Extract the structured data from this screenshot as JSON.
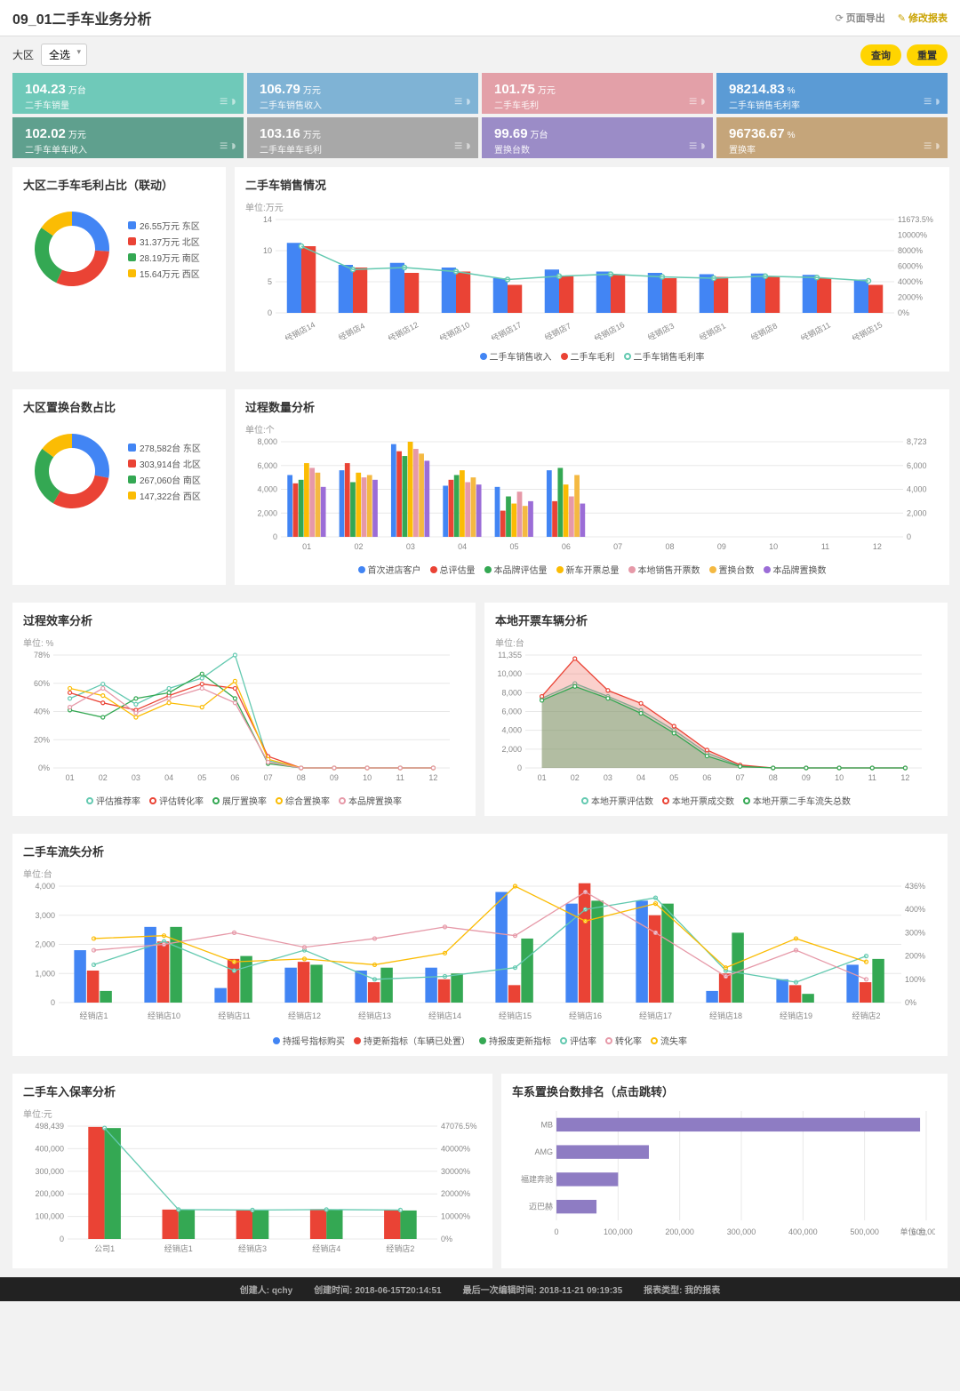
{
  "header": {
    "title": "09_01二手车业务分析",
    "actions": {
      "export": "页面导出",
      "edit": "修改报表"
    }
  },
  "toolbar": {
    "region_label": "大区",
    "region_value": "全选",
    "query": "查询",
    "reset": "重置"
  },
  "kpis": [
    {
      "value": "104.23",
      "unit": "万台",
      "label": "二手车销量",
      "color": "#6fc9b9"
    },
    {
      "value": "106.79",
      "unit": "万元",
      "label": "二手车销售收入",
      "color": "#7fb3d5"
    },
    {
      "value": "101.75",
      "unit": "万元",
      "label": "二手车毛利",
      "color": "#e3a0a8"
    },
    {
      "value": "98214.83",
      "unit": "%",
      "label": "二手车销售毛利率",
      "color": "#5b9bd5"
    },
    {
      "value": "102.02",
      "unit": "万元",
      "label": "二手车单车收入",
      "color": "#5fa08e"
    },
    {
      "value": "103.16",
      "unit": "万元",
      "label": "二手车单车毛利",
      "color": "#a8a8a8"
    },
    {
      "value": "99.69",
      "unit": "万台",
      "label": "置换台数",
      "color": "#9b8cc7"
    },
    {
      "value": "96736.67",
      "unit": "%",
      "label": "置换率",
      "color": "#c5a57a"
    }
  ],
  "donut1": {
    "title": "大区二手车毛利占比（联动）",
    "items": [
      {
        "label": "26.55万元 东区",
        "color": "#4285f4",
        "v": 26.55
      },
      {
        "label": "31.37万元 北区",
        "color": "#ea4335",
        "v": 31.37
      },
      {
        "label": "28.19万元 南区",
        "color": "#34a853",
        "v": 28.19
      },
      {
        "label": "15.64万元 西区",
        "color": "#fbbc04",
        "v": 15.64
      }
    ]
  },
  "sales": {
    "title": "二手车销售情况",
    "unit": "单位:万元",
    "cats": [
      "经销店14",
      "经销店4",
      "经销店12",
      "经销店10",
      "经销店17",
      "经销店7",
      "经销店16",
      "经销店3",
      "经销店1",
      "经销店8",
      "经销店11",
      "经销店15"
    ],
    "s1": {
      "name": "二手车销售收入",
      "color": "#4285f4",
      "data": [
        10.5,
        7.2,
        7.5,
        6.8,
        5.2,
        6.5,
        6.2,
        6.0,
        5.8,
        5.9,
        5.7,
        5.0
      ]
    },
    "s2": {
      "name": "二手车毛利",
      "color": "#ea4335",
      "data": [
        10.0,
        6.8,
        6.0,
        6.2,
        4.2,
        5.5,
        5.8,
        5.2,
        5.4,
        5.5,
        5.2,
        4.2
      ]
    },
    "s3": {
      "name": "二手车销售毛利率",
      "color": "#63c9b0",
      "data": [
        10.0,
        6.5,
        6.8,
        6.2,
        5.0,
        5.5,
        5.8,
        5.4,
        5.2,
        5.5,
        5.3,
        4.8
      ]
    },
    "ymax": 14,
    "yticks": [
      "0",
      "5",
      "10",
      "14"
    ],
    "y2max": 11673.5,
    "y2ticks": [
      "0%",
      "2000%",
      "4000%",
      "6000%",
      "8000%",
      "10000%",
      "11673.5%"
    ]
  },
  "donut2": {
    "title": "大区置换台数占比",
    "items": [
      {
        "label": "278,582台 东区",
        "color": "#4285f4",
        "v": 278582
      },
      {
        "label": "303,914台 北区",
        "color": "#ea4335",
        "v": 303914
      },
      {
        "label": "267,060台 南区",
        "color": "#34a853",
        "v": 267060
      },
      {
        "label": "147,322台 西区",
        "color": "#fbbc04",
        "v": 147322
      }
    ]
  },
  "process_qty": {
    "title": "过程数量分析",
    "unit": "单位:个",
    "cats": [
      "01",
      "02",
      "03",
      "04",
      "05",
      "06",
      "07",
      "08",
      "09",
      "10",
      "11",
      "12"
    ],
    "ymax": 8000,
    "yticks": [
      "0",
      "2,000",
      "4,000",
      "6,000",
      "8,000"
    ],
    "y2ticks": [
      "0",
      "2,000",
      "4,000",
      "6,000",
      "8,723"
    ],
    "series": [
      {
        "name": "首次进店客户",
        "color": "#4285f4",
        "data": [
          5200,
          5600,
          7800,
          4300,
          4200,
          5600,
          0,
          0,
          0,
          0,
          0,
          0
        ]
      },
      {
        "name": "总评估量",
        "color": "#ea4335",
        "data": [
          4500,
          6200,
          7200,
          4800,
          2200,
          3000,
          0,
          0,
          0,
          0,
          0,
          0
        ]
      },
      {
        "name": "本品牌评估量",
        "color": "#34a853",
        "data": [
          4800,
          4600,
          6800,
          5200,
          3400,
          5800,
          0,
          0,
          0,
          0,
          0,
          0
        ]
      },
      {
        "name": "新车开票总量",
        "color": "#fbbc04",
        "data": [
          6200,
          5400,
          8000,
          5600,
          2800,
          4400,
          0,
          0,
          0,
          0,
          0,
          0
        ]
      },
      {
        "name": "本地销售开票数",
        "color": "#e699a8",
        "data": [
          5800,
          5000,
          7400,
          4600,
          3800,
          3400,
          0,
          0,
          0,
          0,
          0,
          0
        ]
      },
      {
        "name": "置换台数",
        "color": "#f4b942",
        "data": [
          5400,
          5200,
          7000,
          5000,
          2600,
          5200,
          0,
          0,
          0,
          0,
          0,
          0
        ]
      },
      {
        "name": "本品牌置换数",
        "color": "#9b6dd7",
        "data": [
          4200,
          4800,
          6400,
          4400,
          3000,
          2800,
          0,
          0,
          0,
          0,
          0,
          0
        ]
      }
    ]
  },
  "process_eff": {
    "title": "过程效率分析",
    "unit": "单位: %",
    "cats": [
      "01",
      "02",
      "03",
      "04",
      "05",
      "06",
      "07",
      "08",
      "09",
      "10",
      "11",
      "12"
    ],
    "ymax": 78,
    "yticks": [
      "0%",
      "20%",
      "40%",
      "60%",
      "78%"
    ],
    "series": [
      {
        "name": "评估推荐率",
        "color": "#63c9b0",
        "data": [
          48,
          58,
          44,
          55,
          62,
          78,
          5,
          0,
          0,
          0,
          0,
          0
        ]
      },
      {
        "name": "评估转化率",
        "color": "#ea4335",
        "data": [
          52,
          45,
          40,
          50,
          58,
          55,
          8,
          0,
          0,
          0,
          0,
          0
        ]
      },
      {
        "name": "展厅置换率",
        "color": "#34a853",
        "data": [
          40,
          35,
          48,
          52,
          65,
          48,
          3,
          0,
          0,
          0,
          0,
          0
        ]
      },
      {
        "name": "综合置换率",
        "color": "#fbbc04",
        "data": [
          55,
          50,
          35,
          45,
          42,
          60,
          6,
          0,
          0,
          0,
          0,
          0
        ]
      },
      {
        "name": "本品牌置换率",
        "color": "#e699a8",
        "data": [
          42,
          55,
          38,
          48,
          55,
          45,
          4,
          0,
          0,
          0,
          0,
          0
        ]
      }
    ]
  },
  "local_inv": {
    "title": "本地开票车辆分析",
    "unit": "单位:台",
    "cats": [
      "01",
      "02",
      "03",
      "04",
      "05",
      "06",
      "07",
      "08",
      "09",
      "10",
      "11",
      "12"
    ],
    "ymax": 11355,
    "yticks": [
      "0",
      "2,000",
      "4,000",
      "6,000",
      "8,000",
      "10,000",
      "11,355"
    ],
    "series": [
      {
        "name": "本地开票评估数",
        "color": "#63c9b0",
        "data": [
          7000,
          8500,
          7200,
          5800,
          3800,
          1500,
          200,
          0,
          0,
          0,
          0,
          0
        ]
      },
      {
        "name": "本地开票成交数",
        "color": "#ea4335",
        "data": [
          7200,
          11000,
          7800,
          6500,
          4200,
          1800,
          300,
          0,
          0,
          0,
          0,
          0
        ]
      },
      {
        "name": "本地开票二手车流失总数",
        "color": "#34a853",
        "data": [
          6800,
          8200,
          7000,
          5500,
          3500,
          1200,
          150,
          0,
          0,
          0,
          0,
          0
        ]
      }
    ]
  },
  "loss": {
    "title": "二手车流失分析",
    "unit": "单位:台",
    "cats": [
      "经销店1",
      "经销店10",
      "经销店11",
      "经销店12",
      "经销店13",
      "经销店14",
      "经销店15",
      "经销店16",
      "经销店17",
      "经销店18",
      "经销店19",
      "经销店2"
    ],
    "ymax": 4000,
    "yticks": [
      "0",
      "1,000",
      "2,000",
      "3,000",
      "4,000"
    ],
    "y2ticks": [
      "0%",
      "100%",
      "200%",
      "300%",
      "400%",
      "436%"
    ],
    "bars": [
      {
        "name": "持摇号指标购买",
        "color": "#4285f4",
        "data": [
          1800,
          2600,
          500,
          1200,
          1100,
          1200,
          3800,
          3400,
          3500,
          400,
          800,
          1300
        ]
      },
      {
        "name": "持更新指标（车辆已处置）",
        "color": "#ea4335",
        "data": [
          1100,
          2100,
          1500,
          1400,
          700,
          800,
          600,
          4100,
          3000,
          1000,
          600,
          700
        ]
      },
      {
        "name": "持报废更新指标",
        "color": "#34a853",
        "data": [
          400,
          2600,
          1600,
          1300,
          1200,
          1000,
          2200,
          3500,
          3400,
          2400,
          300,
          1500
        ]
      }
    ],
    "lines": [
      {
        "name": "评估率",
        "color": "#63c9b0",
        "data": [
          1300,
          2100,
          1100,
          1800,
          800,
          900,
          1200,
          3200,
          3600,
          1100,
          700,
          1600
        ]
      },
      {
        "name": "转化率",
        "color": "#e699a8",
        "data": [
          1800,
          2000,
          2400,
          1900,
          2200,
          2600,
          2300,
          3800,
          2400,
          900,
          1800,
          800
        ]
      },
      {
        "name": "流失率",
        "color": "#fbbc04",
        "data": [
          2200,
          2300,
          1400,
          1500,
          1300,
          1700,
          4000,
          2800,
          3400,
          1200,
          2200,
          1400
        ]
      }
    ]
  },
  "ins": {
    "title": "二手车入保率分析",
    "unit": "单位:元",
    "cats": [
      "公司1",
      "经销店1",
      "经销店3",
      "经销店4",
      "经销店2"
    ],
    "ymax": 498439,
    "yticks": [
      "0",
      "100,000",
      "200,000",
      "300,000",
      "400,000",
      "498,439"
    ],
    "y2ticks": [
      "0%",
      "10000%",
      "20000%",
      "30000%",
      "40000%",
      "47076.5%"
    ],
    "s1": {
      "color": "#ea4335",
      "data": [
        495000,
        130000,
        128000,
        132000,
        128000
      ]
    },
    "s2": {
      "color": "#34a853",
      "data": [
        490000,
        128000,
        126000,
        130000,
        126000
      ]
    },
    "line": {
      "color": "#63c9b0",
      "data": [
        490000,
        130000,
        128000,
        130000,
        128000
      ]
    }
  },
  "rank": {
    "title": "车系置换台数排名（点击跳转）",
    "unit": "单位:台",
    "xticks": [
      "0",
      "100,000",
      "200,000",
      "300,000",
      "400,000",
      "500,000",
      "600,000"
    ],
    "xmax": 600000,
    "items": [
      {
        "label": "MB",
        "v": 590000,
        "color": "#8e7cc3"
      },
      {
        "label": "AMG",
        "v": 150000,
        "color": "#8e7cc3"
      },
      {
        "label": "福建奔驰",
        "v": 100000,
        "color": "#8e7cc3"
      },
      {
        "label": "迈巴赫",
        "v": 65000,
        "color": "#8e7cc3"
      }
    ]
  },
  "footer": {
    "creator_l": "创建人:",
    "creator": "qchy",
    "ctime_l": "创建时间:",
    "ctime": "2018-06-15T20:14:51",
    "mtime_l": "最后一次编辑时间:",
    "mtime": "2018-11-21 09:19:35",
    "type_l": "报表类型:",
    "type": "我的报表"
  }
}
